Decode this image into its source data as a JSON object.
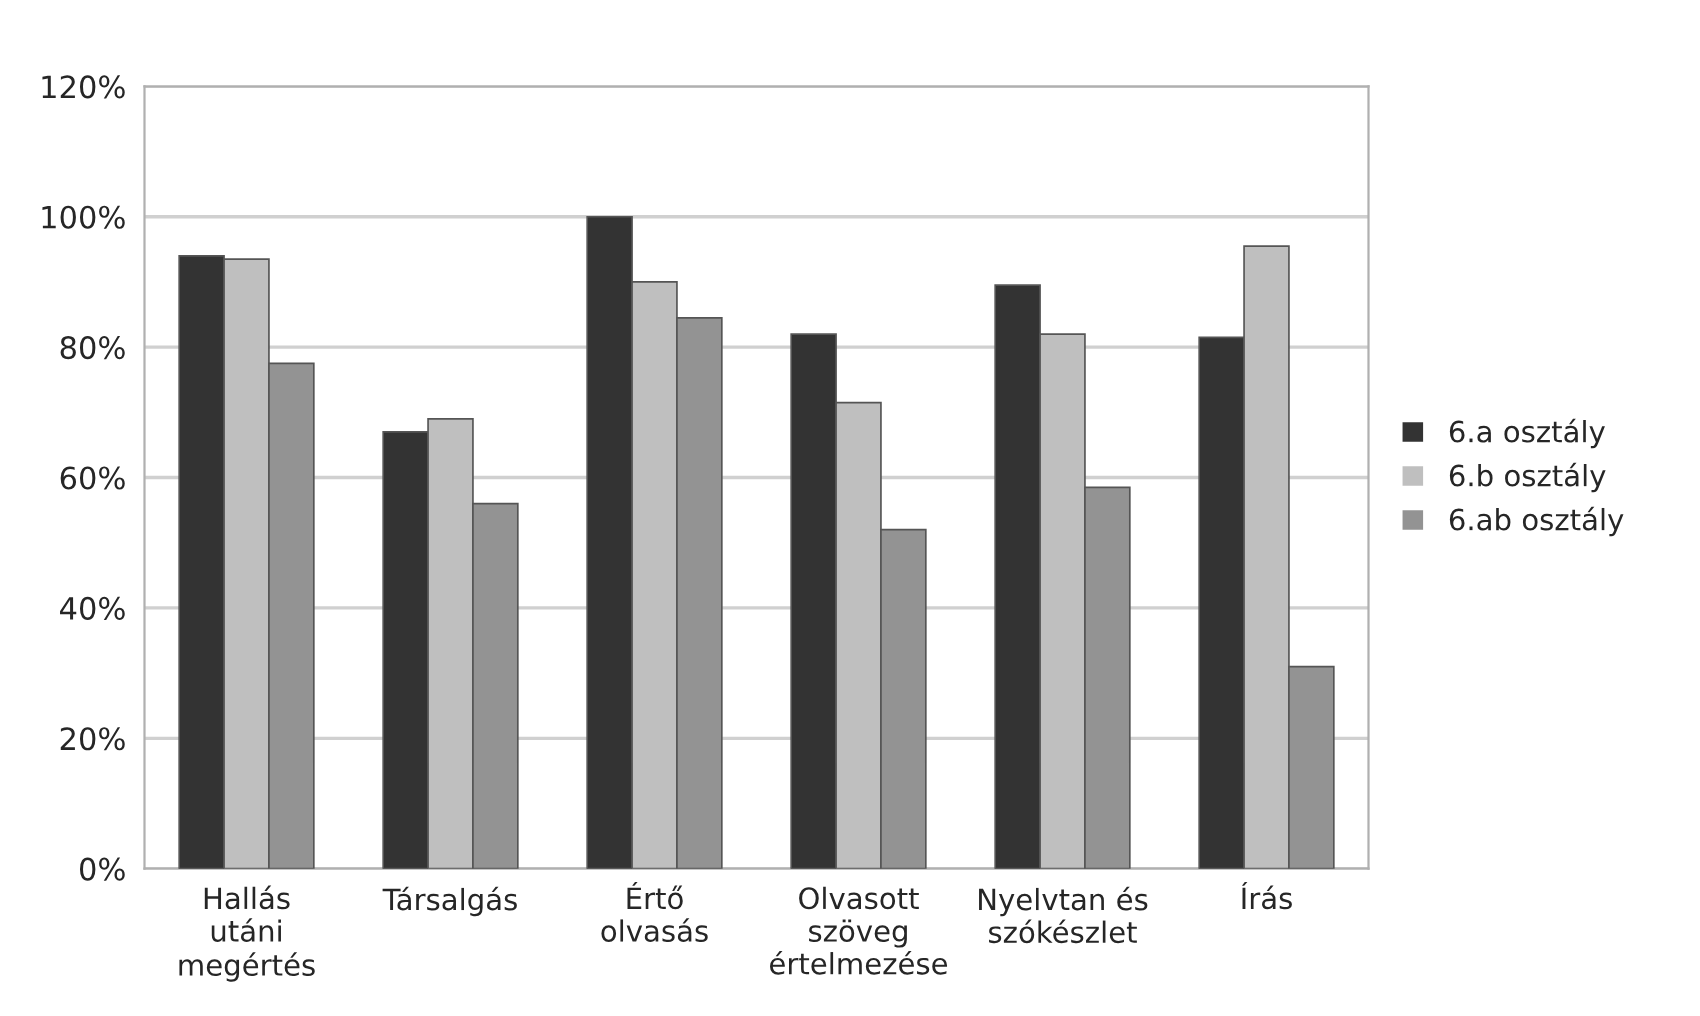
{
  "chart_data": {
    "type": "bar",
    "categories": [
      "Hallás\nutáni\nmegértés",
      "Társalgás",
      "Értő\nolvasás",
      "Olvasott\nszöveg\nértelmezése",
      "Nyelvtan és\nszókészlet",
      "Írás"
    ],
    "series": [
      {
        "name": "6.a osztály",
        "color": "#333333",
        "values": [
          94,
          67,
          100,
          82,
          89.5,
          81.5
        ]
      },
      {
        "name": "6.b osztály",
        "color": "#bfbfbf",
        "values": [
          93.5,
          69,
          90,
          71.5,
          82,
          95.5
        ]
      },
      {
        "name": "6.ab osztály",
        "color": "#939393",
        "values": [
          77.5,
          56,
          84.5,
          52,
          58.5,
          31
        ]
      }
    ],
    "ylim": [
      0,
      120
    ],
    "yticks": [
      {
        "value": 0,
        "label": "0%"
      },
      {
        "value": 20,
        "label": "20%"
      },
      {
        "value": 40,
        "label": "40%"
      },
      {
        "value": 60,
        "label": "60%"
      },
      {
        "value": 80,
        "label": "80%"
      },
      {
        "value": 100,
        "label": "100%"
      },
      {
        "value": 120,
        "label": "120%"
      }
    ],
    "grid": "y",
    "legend": "right"
  }
}
